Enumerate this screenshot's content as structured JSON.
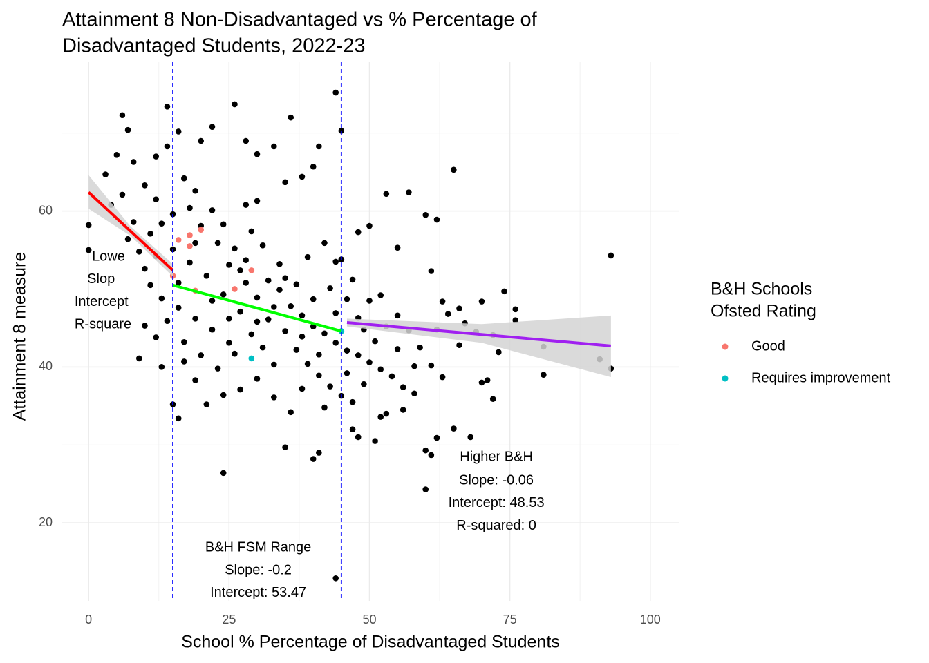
{
  "chart_data": {
    "type": "scatter",
    "title": [
      "Attainment 8 Non-Disadvantaged vs % Percentage of",
      "Disadvantaged Students, 2022-23"
    ],
    "x_label": "School % Percentage of Disadvantaged Students",
    "y_label": "Attainment 8 measure",
    "xlim": [
      -4.7,
      105.2
    ],
    "ylim": [
      10,
      79.1
    ],
    "xticks": [
      0,
      25,
      50,
      75,
      100
    ],
    "yticks": [
      20,
      40,
      60
    ],
    "x_minor_ticks": [
      12.5,
      37.5,
      62.5,
      87.5
    ],
    "y_minor_ticks": [
      30,
      50,
      70
    ],
    "grid": true,
    "legend_title": [
      "B&H Schools",
      "Ofsted Rating"
    ],
    "legend_position": "right",
    "vlines": {
      "color": "#0000ff",
      "values": [
        15,
        45
      ]
    },
    "bands": [
      {
        "color": "#d3d3d3",
        "x": [
          0,
          7.5,
          15
        ],
        "lower": [
          60.3,
          56.8,
          51.6
        ],
        "upper": [
          64.6,
          58.0,
          53.2
        ]
      },
      {
        "color": "#d3d3d3",
        "x": [
          46,
          70,
          93
        ],
        "lower": [
          45.2,
          43.1,
          38.7
        ],
        "upper": [
          46.2,
          45.5,
          46.6
        ]
      }
    ],
    "fit_lines": [
      {
        "color": "#ff0000",
        "x": [
          0,
          15
        ],
        "values": [
          62.4,
          52.4
        ]
      },
      {
        "color": "#00ff00",
        "x": [
          15,
          45
        ],
        "values": [
          50.5,
          44.6
        ]
      },
      {
        "color": "#a020f0",
        "x": [
          46,
          93
        ],
        "values": [
          45.7,
          42.7
        ]
      }
    ],
    "annotations": [
      {
        "text": "Lowe",
        "x": 0.6,
        "y": 54.1,
        "anchor": "start"
      },
      {
        "text": "Slop",
        "x": -0.25,
        "y": 51.2,
        "anchor": "start"
      },
      {
        "text": "Intercept",
        "x": -2.5,
        "y": 48.3,
        "anchor": "start"
      },
      {
        "text": "R-square",
        "x": -2.5,
        "y": 45.4,
        "anchor": "start"
      },
      {
        "text": "Higher B&H",
        "x": 72.6,
        "y": 28.4,
        "anchor": "middle"
      },
      {
        "text": "Slope: -0.06",
        "x": 72.6,
        "y": 25.4,
        "anchor": "middle"
      },
      {
        "text": "Intercept: 48.53",
        "x": 72.6,
        "y": 22.5,
        "anchor": "middle"
      },
      {
        "text": "R-squared: 0",
        "x": 72.6,
        "y": 19.6,
        "anchor": "middle"
      },
      {
        "text": "B&H FSM Range",
        "x": 30.2,
        "y": 16.8,
        "anchor": "middle"
      },
      {
        "text": "Slope: -0.2",
        "x": 30.2,
        "y": 13.9,
        "anchor": "middle"
      },
      {
        "text": "Intercept: 53.47",
        "x": 30.2,
        "y": 11.0,
        "anchor": "middle"
      }
    ],
    "series": [
      {
        "color": "#000000",
        "x": [
          6,
          14,
          26,
          44,
          16,
          36,
          45,
          41,
          65,
          57,
          53,
          60,
          62,
          93,
          93,
          91,
          81,
          81,
          74,
          76,
          76,
          70,
          72,
          73,
          71,
          70,
          72,
          68,
          65,
          62,
          60,
          60,
          61,
          35,
          24,
          40,
          41,
          44,
          15,
          16,
          9,
          0,
          0,
          13,
          56,
          51,
          48,
          47,
          53,
          52,
          66,
          67,
          64,
          61,
          63,
          55,
          50,
          48,
          39,
          44,
          42,
          28,
          30,
          35,
          38,
          40,
          33,
          28,
          30,
          22,
          20,
          7,
          5,
          8,
          12,
          14,
          3,
          4,
          6,
          10,
          12,
          17,
          19,
          22,
          24,
          26,
          28,
          32,
          34,
          36,
          38,
          40,
          42,
          44,
          46,
          48,
          50,
          52,
          54,
          56,
          58,
          33,
          30,
          27,
          24,
          21,
          19,
          17,
          25,
          22,
          19,
          16,
          13,
          11,
          10,
          9,
          11,
          13,
          15,
          18,
          20,
          23,
          25,
          28,
          30,
          32,
          35,
          37,
          39,
          41,
          43,
          45,
          47,
          49,
          51,
          53,
          55,
          57,
          59,
          61,
          63,
          50,
          47,
          45,
          43,
          40,
          37,
          34,
          31,
          29,
          27,
          24,
          21,
          18,
          15,
          12,
          14,
          17,
          20,
          23,
          26,
          29,
          31,
          33,
          36,
          38,
          42,
          46,
          48,
          52,
          55,
          58,
          62,
          66,
          69,
          8,
          7,
          10,
          12,
          16,
          19,
          22,
          25,
          27,
          30,
          33,
          35,
          38,
          41,
          44,
          46,
          49
        ],
        "values": [
          72.3,
          73.4,
          73.7,
          75.2,
          70.2,
          72,
          70.3,
          68.3,
          65.3,
          62.4,
          62.2,
          59.5,
          58.9,
          54.3,
          39.8,
          41,
          42.6,
          39,
          49.7,
          47.4,
          46,
          48.4,
          44.1,
          41.9,
          38.3,
          38,
          35.9,
          31,
          32.1,
          30.9,
          29.3,
          24.3,
          28.7,
          29.7,
          26.4,
          28.2,
          29,
          12.9,
          35.2,
          33.4,
          41.1,
          58.2,
          55,
          40,
          34.5,
          30.5,
          31,
          32,
          34,
          33.6,
          42.8,
          45.6,
          46.8,
          52.3,
          48.4,
          55.3,
          58.1,
          57.3,
          54.1,
          53.5,
          55.9,
          60.8,
          61.3,
          63.7,
          64.4,
          65.7,
          68.3,
          69,
          67.3,
          70.8,
          69,
          70.4,
          67.2,
          66.3,
          67,
          68.3,
          64.7,
          60.8,
          62.1,
          63.3,
          61.5,
          64.2,
          62.6,
          60.1,
          58.3,
          55.2,
          53.7,
          51.1,
          49.9,
          47.8,
          46.6,
          45.2,
          44.3,
          43.1,
          42.1,
          41.5,
          40.6,
          39.7,
          38.8,
          37.4,
          36.6,
          40.3,
          38.5,
          37.1,
          36.4,
          35.2,
          38.3,
          40.7,
          43.1,
          44.8,
          46.2,
          47.6,
          48.8,
          50.5,
          52.6,
          54.8,
          57.1,
          58.4,
          59.6,
          60.4,
          58.1,
          55.9,
          53.1,
          50.8,
          48.9,
          46.1,
          44.6,
          42.2,
          40.4,
          38.9,
          37.5,
          36.3,
          35.5,
          37.8,
          43.3,
          45.2,
          46.6,
          44.7,
          42.5,
          40.2,
          38.7,
          48.5,
          51.2,
          53.8,
          50.1,
          48.7,
          50.6,
          53.2,
          55.6,
          57.4,
          47.1,
          49.3,
          51.7,
          53.4,
          55.1,
          54.2,
          45.9,
          43.2,
          41.5,
          39.8,
          41.7,
          44.2,
          42.5,
          36.1,
          34.2,
          37.2,
          34.8,
          39.2,
          46.3,
          49.2,
          42.3,
          40.1,
          44.8,
          47.5,
          44.5,
          58.6,
          56.4,
          45.3,
          43.8,
          50.8,
          55.9,
          48.5,
          46.2,
          52.4,
          45.8,
          47.7,
          51.4,
          43.9,
          41.6,
          46.9,
          48.7,
          44.8
        ]
      },
      {
        "name": "Good",
        "color": "#f8766d",
        "x": [
          15,
          16,
          18,
          18,
          20,
          19,
          26,
          29
        ],
        "values": [
          51.7,
          56.3,
          56.9,
          55.5,
          57.6,
          49.8,
          50,
          52.4
        ]
      },
      {
        "name": "Requires improvement",
        "color": "#00bfc4",
        "x": [
          29,
          45
        ],
        "values": [
          41.1,
          44.6
        ]
      }
    ]
  }
}
